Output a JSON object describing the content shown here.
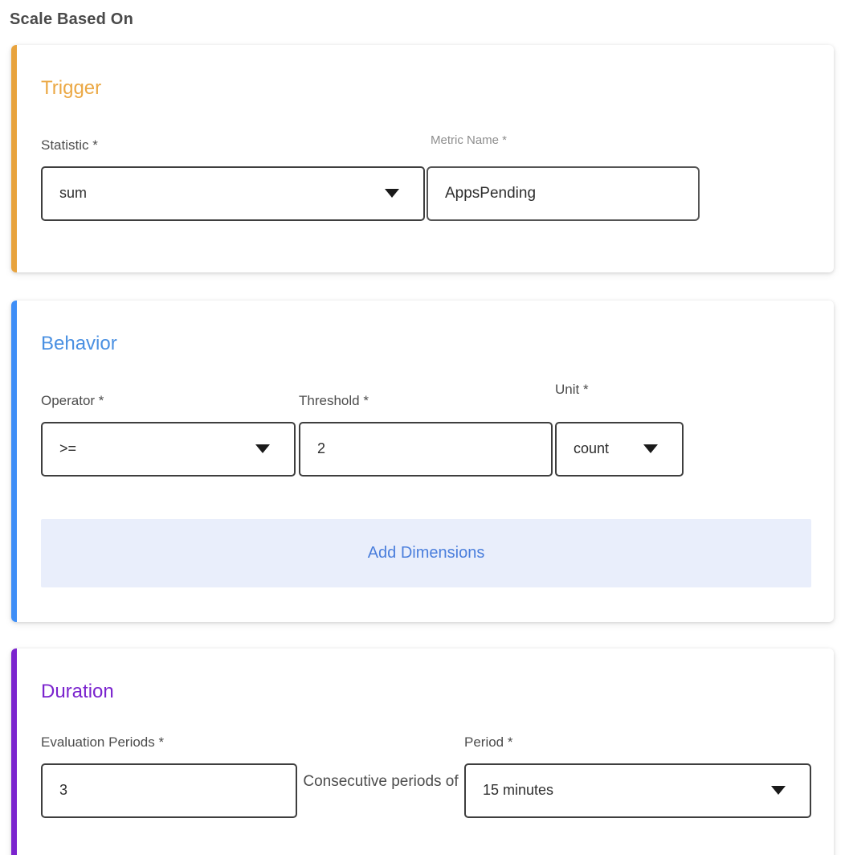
{
  "page": {
    "heading": "Scale Based On"
  },
  "colors": {
    "trigger_accent": "#E8A33D",
    "behavior_accent": "#3E8EF7",
    "duration_accent": "#7B24CE",
    "add_dimensions_bg": "#E9EEFB",
    "add_dimensions_text": "#4A7EDC"
  },
  "trigger_card": {
    "title": "Trigger",
    "statistic": {
      "label": "Statistic *",
      "value": "sum"
    },
    "metric_name": {
      "label": "Metric Name *",
      "value": "AppsPending"
    }
  },
  "behavior_card": {
    "title": "Behavior",
    "operator": {
      "label": "Operator *",
      "value": ">="
    },
    "threshold": {
      "label": "Threshold *",
      "value": "2"
    },
    "unit": {
      "label": "Unit *",
      "value": "count"
    },
    "add_dimensions_label": "Add Dimensions"
  },
  "duration_card": {
    "title": "Duration",
    "evaluation_periods": {
      "label": "Evaluation Periods *",
      "value": "3"
    },
    "connector_text": "Consecutive periods of",
    "period": {
      "label": "Period *",
      "value": "15 minutes"
    }
  }
}
